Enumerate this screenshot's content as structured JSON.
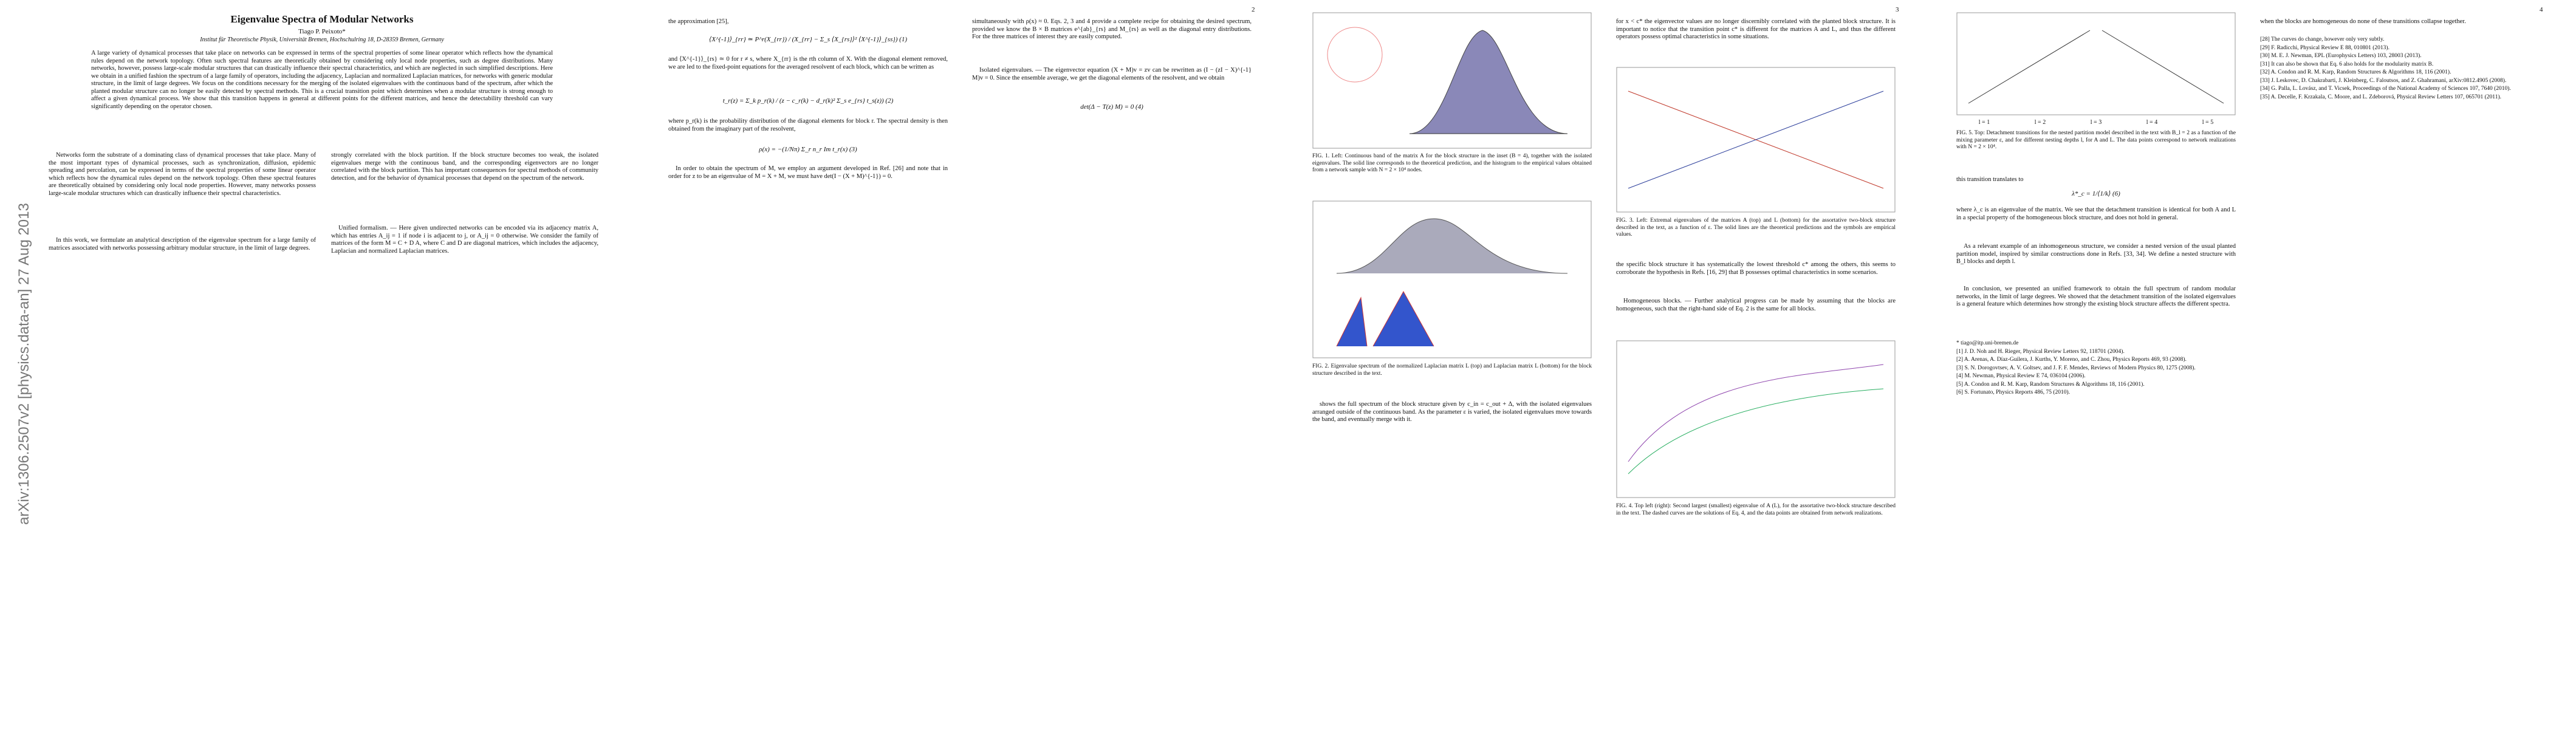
{
  "arxiv_stamp": "arXiv:1306.2507v2  [physics.data-an]  27 Aug 2013",
  "page1": {
    "title": "Eigenvalue Spectra of Modular Networks",
    "author": "Tiago P. Peixoto*",
    "affiliation": "Institut für Theoretische Physik, Universität Bremen, Hochschulring 18, D-28359 Bremen, Germany",
    "abstract": "A large variety of dynamical processes that take place on networks can be expressed in terms of the spectral properties of some linear operator which reflects how the dynamical rules depend on the network topology. Often such spectral features are theoretically obtained by considering only local node properties, such as degree distributions. Many networks, however, possess large-scale modular structures that can drastically influence their spectral characteristics, and which are neglected in such simplified descriptions. Here we obtain in a unified fashion the spectrum of a large family of operators, including the adjacency, Laplacian and normalized Laplacian matrices, for networks with generic modular structure, in the limit of large degrees. We focus on the conditions necessary for the merging of the isolated eigenvalues with the continuous band of the spectrum, after which the planted modular structure can no longer be easily detected by spectral methods. This is a crucial transition point which determines when a modular structure is strong enough to affect a given dynamical process. We show that this transition happens in general at different points for the different matrices, and hence the detectability threshold can vary significantly depending on the operator chosen.",
    "col1": "Networks form the substrate of a dominating class of dynamical processes that take place. Many of the most important types of dynamical processes, such as synchronization, diffusion, epidemic spreading and percolation, can be expressed in terms of the spectral properties of some linear operator which reflects how the dynamical rules depend on the network topology. Often these spectral features are theoretically obtained by considering only local node properties. However, many networks possess large-scale modular structures which can drastically influence their spectral characteristics.",
    "col1b": "In this work, we formulate an analytical description of the eigenvalue spectrum for a large family of matrices associated with networks possessing arbitrary modular structure, in the limit of large degrees.",
    "col2": "strongly correlated with the block partition. If the block structure becomes too weak, the isolated eigenvalues merge with the continuous band, and the corresponding eigenvectors are no longer correlated with the block partition. This has important consequences for spectral methods of community detection, and for the behavior of dynamical processes that depend on the spectrum of the network.",
    "col2b": "Unified formalism. — Here given undirected networks can be encoded via its adjacency matrix A, which has entries A_ij = 1 if node i is adjacent to j, or A_ij = 0 otherwise. We consider the family of matrices of the form M = C + D A, where C and D are diagonal matrices, which includes the adjacency, Laplacian and normalized Laplacian matrices."
  },
  "page2": {
    "page_number": "2",
    "col1": "the approximation [25],",
    "eq1": "⟨X^{-1}⟩_{rr} ≃ P^r(X_{rr}) / (X_{rr} − Σ_s ⟨X_{rs}⟩² ⟨X^{-1}⟩_{ss})     (1)",
    "col1b": "and ⟨X^{-1}⟩_{rs} ≃ 0 for r ≠ s, where X_{rr} is the rth column of X. With the diagonal element removed, we are led to the fixed-point equations for the averaged resolvent of each block, which can be written as",
    "eq2": "t_r(z) = Σ_k p_r(k) / (z − c_r(k) − d_r(k)² Σ_s e_{rs} t_s(z))     (2)",
    "col1c": "where p_r(k) is the probability distribution of the diagonal elements for block r. The spectral density is then obtained from the imaginary part of the resolvent,",
    "eq3": "ρ(x) = −(1/Nπ) Σ_r n_r Im t_r(x)     (3)",
    "col1d": "In order to obtain the spectrum of M, we employ an argument developed in Ref. [26] and note that in order for z to be an eigenvalue of M = X + M, we must have det(I − (X + M)^{-1}) = 0.",
    "col2": "simultaneously with ρ(x) ≈ 0. Eqs. 2, 3 and 4 provide a complete recipe for obtaining the desired spectrum, provided we know the B × B matrices e^{ab}_{rs} and M_{rs} as well as the diagonal entry distributions. For the three matrices of interest they are easily computed.",
    "col2b": "Isolated eigenvalues. — The eigenvector equation (X + M)v = zv can be rewritten as (I − (zI − X)^{-1} M)v = 0. Since the ensemble average, we get the diagonal elements of the resolvent, and we obtain",
    "eq4": "det(Δ − T(z) M) = 0     (4)"
  },
  "page3": {
    "page_number": "3",
    "fig1_caption": "FIG. 1. Left: Continuous band of the matrix A for the block structure in the inset (B = 4), together with the isolated eigenvalues. The solid line corresponds to the theoretical prediction, and the histogram to the empirical values obtained from a network sample with N = 2 × 10⁴ nodes.",
    "fig2_caption": "FIG. 2. Eigenvalue spectrum of the normalized Laplacian matrix L (top) and Laplacian matrix L (bottom) for the block structure described in the text.",
    "col1": "shows the full spectrum of the block structure given by c_in = c_out + Δ, with the isolated eigenvalues arranged outside of the continuous band. As the parameter ε is varied, the isolated eigenvalues move towards the band, and eventually merge with it.",
    "col2": "for x < c* the eigenvector values are no longer discernibly correlated with the planted block structure. It is important to notice that the transition point c* is different for the matrices A and L, and thus the different operators possess optimal characteristics in some situations.",
    "fig3_caption": "FIG. 3. Left: Extremal eigenvalues of the matrices A (top) and L (bottom) for the assortative two-block structure described in the text, as a function of ε. The solid lines are the theoretical predictions and the symbols are empirical values.",
    "col3": "the specific block structure it has systematically the lowest threshold c* among the others, this seems to corroborate the hypothesis in Refs. [16, 29] that B possesses optimal characteristics in some scenarios.",
    "col3b": "Homogeneous blocks. — Further analytical progress can be made by assuming that the blocks are homogeneous, such that the right-hand side of Eq. 2 is the same for all blocks.",
    "fig4_caption": "FIG. 4. Top left (right): Second largest (smallest) eigenvalue of A (L), for the assortative two-block structure described in the text. The dashed curves are the solutions of Eq. 4, and the data points are obtained from network realizations."
  },
  "page4": {
    "page_number": "4",
    "fig5_caption": "FIG. 5. Top: Detachment transitions for the nested partition model described in the text with B_l = 2 as a function of the mixing parameter ε, and for different nesting depths l, for A and L. The data points correspond to network realizations with N = 2 × 10⁴.",
    "fig5_labels": [
      "l = 1",
      "l = 2",
      "l = 3",
      "l = 4",
      "l = 5"
    ],
    "col1": "this transition translates to",
    "eq6": "λ*_c = 1/⟨1/k⟩     (6)",
    "col1b": "where λ_c is an eigenvalue of the matrix. We see that the detachment transition is identical for both A and L in a special property of the homogeneous block structure, and does not hold in general.",
    "col1c": "As a relevant example of an inhomogeneous structure, we consider a nested version of the usual planted partition model, inspired by similar constructions done in Refs. [33, 34]. We define a nested structure with B_l blocks and depth l.",
    "col1d": "In conclusion, we presented an unified framework to obtain the full spectrum of random modular networks, in the limit of large degrees. We showed that the detachment transition of the isolated eigenvalues is a general feature which determines how strongly the existing block structure affects the different spectra.",
    "col2": "when the blocks are homogeneous do none of these transitions collapse together.",
    "refs": [
      "[28] The curves do change, however only very subtly.",
      "[29] F. Radicchi, Physical Review E 88, 010801 (2013).",
      "[30] M. E. J. Newman, EPL (Europhysics Letters) 103, 28003 (2013).",
      "[31] It can also be shown that Eq. 6 also holds for the modularity matrix B.",
      "[32] A. Condon and R. M. Karp, Random Structures & Algorithms 18, 116 (2001).",
      "[33] J. Leskovec, D. Chakrabarti, J. Kleinberg, C. Faloutsos, and Z. Ghahramani, arXiv:0812.4905 (2008).",
      "[34] G. Palla, L. Lovász, and T. Vicsek, Proceedings of the National Academy of Sciences 107, 7640 (2010).",
      "[35] A. Decelle, F. Krzakala, C. Moore, and L. Zdeborová, Physical Review Letters 107, 065701 (2011)."
    ],
    "refs_main": [
      "* tiago@itp.uni-bremen.de",
      "[1] J. D. Noh and H. Rieger, Physical Review Letters 92, 118701 (2004).",
      "[2] A. Arenas, A. Díaz-Guilera, J. Kurths, Y. Moreno, and C. Zhou, Physics Reports 469, 93 (2008).",
      "[3] S. N. Dorogovtsev, A. V. Goltsev, and J. F. F. Mendes, Reviews of Modern Physics 80, 1275 (2008).",
      "[4] M. Newman, Physical Review E 74, 036104 (2006).",
      "[5] A. Condon and R. M. Karp, Random Structures & Algorithms 18, 116 (2001).",
      "[6] S. Fortunato, Physics Reports 486, 75 (2010)."
    ]
  }
}
